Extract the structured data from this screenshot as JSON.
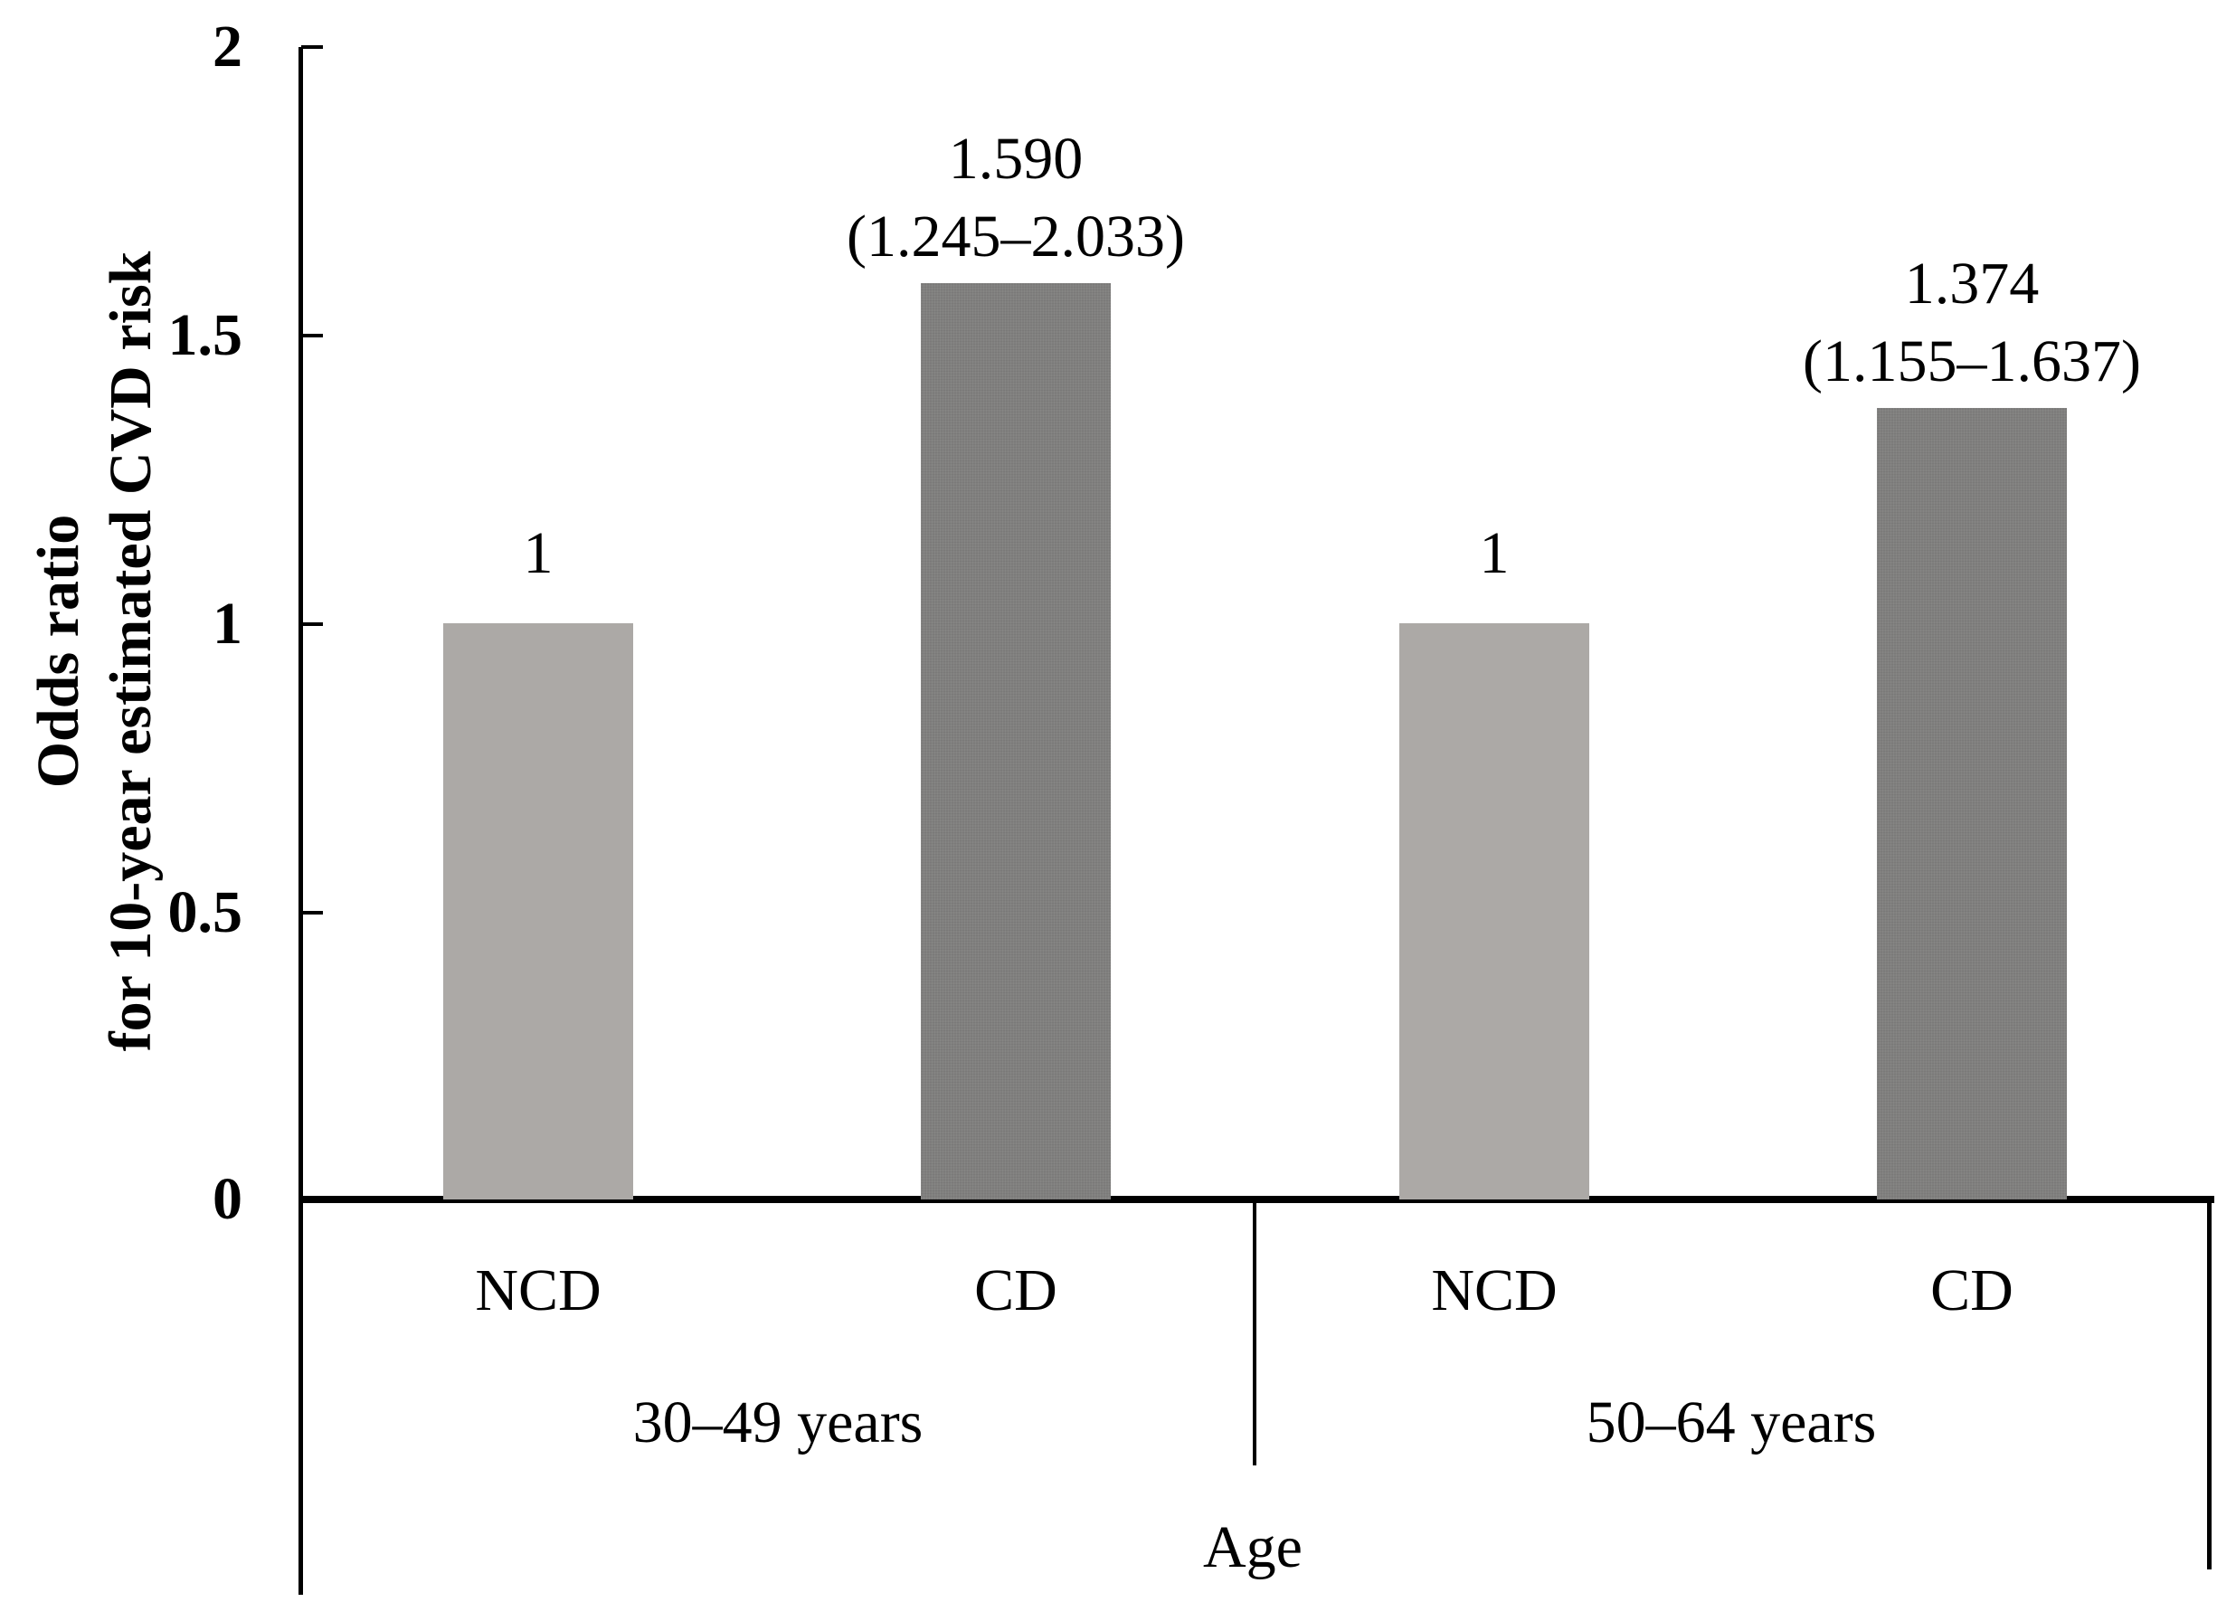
{
  "chart_data": {
    "type": "bar",
    "title": "",
    "xlabel": "Age",
    "ylabel_line1": "Odds ratio",
    "ylabel_line2": "for 10-year estimated CVD risk",
    "ylim": [
      0,
      2
    ],
    "ytick_values": [
      2,
      1.5,
      1,
      0.5,
      0
    ],
    "ytick_labels": [
      "2",
      "1.5",
      "1",
      "0.5",
      "0"
    ],
    "grid": false,
    "legend": "none",
    "bar_colors": {
      "ncd_bar": "#ACA9A6",
      "cd_bar": "#7F7F7F",
      "axis": "#000000"
    },
    "groups": [
      {
        "label": "30–49 years",
        "bars": [
          {
            "category": "NCD",
            "value": 1,
            "display": "1",
            "ci": ""
          },
          {
            "category": "CD",
            "value": 1.59,
            "display": "1.590",
            "ci": "(1.245–2.033)",
            "ci_low": 1.245,
            "ci_high": 2.033
          }
        ]
      },
      {
        "label": "50–64 years",
        "bars": [
          {
            "category": "NCD",
            "value": 1,
            "display": "1",
            "ci": ""
          },
          {
            "category": "CD",
            "value": 1.374,
            "display": "1.374",
            "ci": "(1.155–1.637)",
            "ci_low": 1.155,
            "ci_high": 1.637
          }
        ]
      }
    ]
  }
}
